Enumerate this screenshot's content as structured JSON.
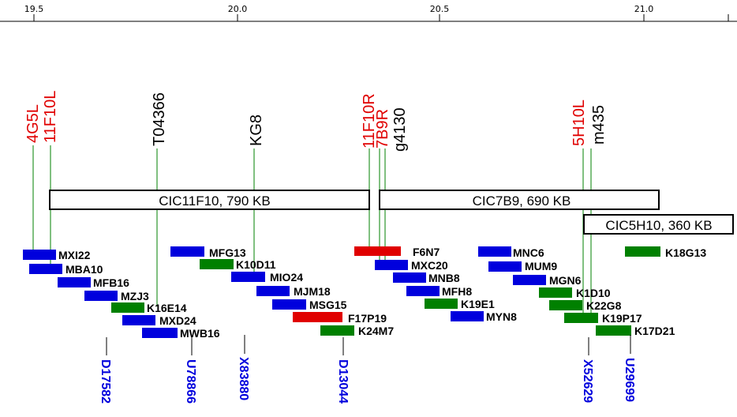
{
  "colors": {
    "red": "#e00000",
    "blue": "#0000dd",
    "green": "#008000",
    "black": "#000000"
  },
  "axis": {
    "ticks": [
      "19.5",
      "20.0",
      "20.5",
      "21.0"
    ]
  },
  "markers": [
    {
      "label": "4G5L",
      "color": "red"
    },
    {
      "label": "11F10L",
      "color": "red"
    },
    {
      "label": "T04366",
      "color": "black"
    },
    {
      "label": "KG8",
      "color": "black"
    },
    {
      "label": "11F10R",
      "color": "red"
    },
    {
      "label": "7B9R",
      "color": "red"
    },
    {
      "label": "g4130",
      "color": "black"
    },
    {
      "label": "5H10L",
      "color": "red"
    },
    {
      "label": "m435",
      "color": "black"
    }
  ],
  "contigs": [
    {
      "label": "CIC11F10, 790 KB"
    },
    {
      "label": "CIC7B9, 690 KB"
    },
    {
      "label": "CIC5H10, 360 KB"
    }
  ],
  "clones": [
    {
      "label": "MXI22",
      "color": "blue"
    },
    {
      "label": "MBA10",
      "color": "blue"
    },
    {
      "label": "MFB16",
      "color": "blue"
    },
    {
      "label": "MZJ3",
      "color": "blue"
    },
    {
      "label": "K16E14",
      "color": "green"
    },
    {
      "label": "MXD24",
      "color": "blue"
    },
    {
      "label": "MWB16",
      "color": "blue"
    },
    {
      "label": "MFG13",
      "color": "blue"
    },
    {
      "label": "K10D11",
      "color": "green"
    },
    {
      "label": "MIO24",
      "color": "blue"
    },
    {
      "label": "MJM18",
      "color": "blue"
    },
    {
      "label": "MSG15",
      "color": "blue"
    },
    {
      "label": "F17P19",
      "color": "red"
    },
    {
      "label": "K24M7",
      "color": "green"
    },
    {
      "label": "F6N7",
      "color": "red"
    },
    {
      "label": "MXC20",
      "color": "blue"
    },
    {
      "label": "MNB8",
      "color": "blue"
    },
    {
      "label": "MFH8",
      "color": "blue"
    },
    {
      "label": "K19E1",
      "color": "green"
    },
    {
      "label": "MYN8",
      "color": "blue"
    },
    {
      "label": "MNC6",
      "color": "blue"
    },
    {
      "label": "MUM9",
      "color": "blue"
    },
    {
      "label": "MGN6",
      "color": "blue"
    },
    {
      "label": "K1D10",
      "color": "green"
    },
    {
      "label": "K22G8",
      "color": "green"
    },
    {
      "label": "K19P17",
      "color": "green"
    },
    {
      "label": "K17D21",
      "color": "green"
    },
    {
      "label": "K18G13",
      "color": "green"
    }
  ],
  "sts": [
    {
      "label": "D17582",
      "color": "blue"
    },
    {
      "label": "U78866",
      "color": "blue"
    },
    {
      "label": "X83880",
      "color": "blue"
    },
    {
      "label": "D13044",
      "color": "blue"
    },
    {
      "label": "X52629",
      "color": "blue"
    },
    {
      "label": "U29699",
      "color": "blue"
    }
  ]
}
